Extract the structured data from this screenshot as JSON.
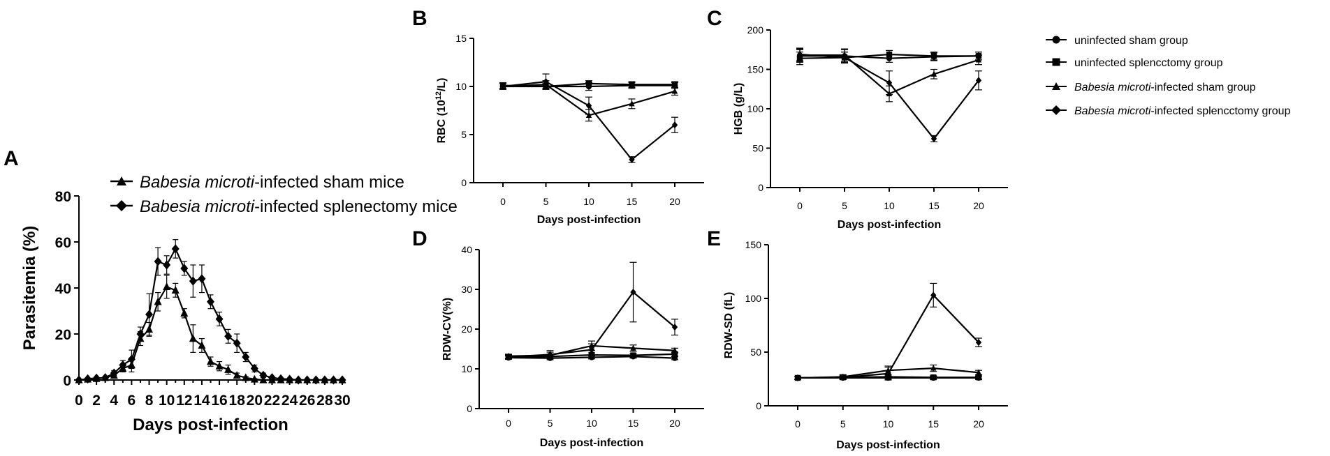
{
  "legend_right": {
    "items": [
      {
        "text": "uninfected sham group",
        "italic_prefix": "",
        "marker": "circle"
      },
      {
        "text": "uninfected splencctomy group",
        "italic_prefix": "",
        "marker": "square"
      },
      {
        "text": "-infected sham group",
        "italic_prefix": "Babesia microti",
        "marker": "triangle"
      },
      {
        "text": "-infected splencctomy group",
        "italic_prefix": "Babesia microti",
        "marker": "diamond"
      }
    ]
  },
  "chart_data": [
    {
      "panel": "A",
      "type": "line",
      "xlabel": "Days post-infection",
      "ylabel": "Parasitemia (%)",
      "xlim": [
        0,
        30
      ],
      "ylim": [
        0,
        80
      ],
      "x_ticks": [
        "0",
        "2",
        "4",
        "6",
        "8",
        "10",
        "12",
        "14",
        "16",
        "18",
        "20",
        "22",
        "24",
        "26",
        "28",
        "30"
      ],
      "y_ticks": [
        "0",
        "20",
        "40",
        "60",
        "80"
      ],
      "x": [
        0,
        1,
        2,
        3,
        4,
        5,
        6,
        7,
        8,
        9,
        10,
        11,
        12,
        13,
        14,
        15,
        16,
        17,
        18,
        19,
        20,
        21,
        22,
        23,
        24,
        25,
        26,
        27,
        28,
        29,
        30
      ],
      "series": [
        {
          "name": "Babesia microti-infected sham mice",
          "italic_prefix": "Babesia microti",
          "suffix": "-infected sham mice",
          "marker": "triangle",
          "values": [
            0,
            0.3,
            0.6,
            1,
            2,
            5,
            6.5,
            18,
            22,
            34,
            40.5,
            39,
            29,
            18,
            15,
            8,
            6,
            4.5,
            2,
            1,
            0.3,
            0,
            0,
            0,
            0,
            0,
            0,
            0,
            0,
            0,
            0
          ],
          "errors": [
            0,
            0.2,
            0.3,
            0.5,
            1,
            1.5,
            3,
            3,
            3,
            4,
            5,
            3,
            2,
            6,
            3,
            2,
            2,
            2,
            1,
            0.5,
            0.3,
            0,
            0,
            0,
            0,
            0,
            0,
            0,
            0,
            0,
            0
          ]
        },
        {
          "name": "Babesia microti-infected splenectomy mice",
          "italic_prefix": "Babesia microti",
          "suffix": "-infected splenectomy mice",
          "marker": "diamond",
          "values": [
            0,
            0.5,
            0.8,
            1,
            3,
            6.5,
            9,
            20,
            28.5,
            51.5,
            50,
            57,
            48.5,
            43,
            44,
            34,
            26.5,
            19,
            16,
            10,
            5,
            2,
            1,
            0.5,
            0.3,
            0,
            0,
            0,
            0,
            0,
            0
          ],
          "errors": [
            0,
            0.3,
            0.4,
            0.5,
            1,
            2,
            4,
            3,
            9,
            6,
            4,
            4,
            3,
            7,
            6,
            3,
            3,
            3,
            4,
            2,
            1.5,
            1,
            0.5,
            0.3,
            0.2,
            0,
            0,
            0,
            0,
            0,
            0
          ]
        }
      ]
    },
    {
      "panel": "B",
      "type": "line",
      "xlabel": "Days post-infection",
      "ylabel_prefix": "RBC (10",
      "ylabel_sup": "12",
      "ylabel_suffix": "/L)",
      "ylim": [
        0,
        15
      ],
      "x_ticks": [
        "0",
        "5",
        "10",
        "15",
        "20"
      ],
      "y_ticks": [
        "0",
        "5",
        "10",
        "15"
      ],
      "x": [
        0,
        5,
        10,
        15,
        20
      ],
      "series": [
        {
          "name": "uninfected sham group",
          "marker": "circle",
          "values": [
            10,
            10,
            10,
            10.1,
            10.1
          ],
          "errors": [
            0.3,
            0.3,
            0.4,
            0.3,
            0.3
          ]
        },
        {
          "name": "uninfected splencctomy group",
          "marker": "square",
          "values": [
            10.1,
            10,
            10.3,
            10.2,
            10.2
          ],
          "errors": [
            0.3,
            0.3,
            0.3,
            0.3,
            0.3
          ]
        },
        {
          "name": "Babesia microti-infected sham group",
          "marker": "triangle",
          "values": [
            10,
            10.2,
            7,
            8.2,
            9.5
          ],
          "errors": [
            0.3,
            0.4,
            0.6,
            0.5,
            0.4
          ]
        },
        {
          "name": "Babesia microti-infected splencctomy group",
          "marker": "diamond",
          "values": [
            10,
            10.5,
            8,
            2.4,
            6
          ],
          "errors": [
            0.3,
            0.8,
            0.9,
            0.3,
            0.8
          ]
        }
      ]
    },
    {
      "panel": "C",
      "type": "line",
      "xlabel": "Days post-infection",
      "ylabel": "HGB (g/L)",
      "ylim": [
        0,
        200
      ],
      "x_ticks": [
        "0",
        "5",
        "10",
        "15",
        "20"
      ],
      "y_ticks": [
        "0",
        "50",
        "100",
        "150",
        "200"
      ],
      "x": [
        0,
        5,
        10,
        15,
        20
      ],
      "series": [
        {
          "name": "uninfected sham group",
          "marker": "circle",
          "values": [
            167,
            167,
            164,
            166,
            167
          ],
          "errors": [
            8,
            8,
            5,
            5,
            5
          ]
        },
        {
          "name": "uninfected splencctomy group",
          "marker": "square",
          "values": [
            164,
            165,
            169,
            167,
            167
          ],
          "errors": [
            8,
            7,
            5,
            5,
            5
          ]
        },
        {
          "name": "Babesia microti-infected sham group",
          "marker": "triangle",
          "values": [
            168,
            168,
            119,
            144,
            162
          ],
          "errors": [
            8,
            8,
            10,
            6,
            6
          ]
        },
        {
          "name": "Babesia microti-infected splencctomy group",
          "marker": "diamond",
          "values": [
            169,
            165,
            133,
            62,
            136
          ],
          "errors": [
            8,
            7,
            15,
            4,
            12
          ]
        }
      ]
    },
    {
      "panel": "D",
      "type": "line",
      "xlabel": "Days post-infection",
      "ylabel": "RDW-CV(%)",
      "ylim": [
        0,
        40
      ],
      "x_ticks": [
        "0",
        "5",
        "10",
        "15",
        "20"
      ],
      "y_ticks": [
        "0",
        "10",
        "20",
        "30",
        "40"
      ],
      "x": [
        0,
        5,
        10,
        15,
        20
      ],
      "series": [
        {
          "name": "uninfected sham group",
          "marker": "circle",
          "values": [
            12.8,
            12.7,
            12.9,
            13.1,
            12.7
          ],
          "errors": [
            0.4,
            0.4,
            0.4,
            0.4,
            0.4
          ]
        },
        {
          "name": "uninfected splencctomy group",
          "marker": "square",
          "values": [
            13,
            13.1,
            13.5,
            13.4,
            13.7
          ],
          "errors": [
            0.4,
            0.4,
            0.5,
            0.5,
            0.5
          ]
        },
        {
          "name": "Babesia microti-infected sham group",
          "marker": "triangle",
          "values": [
            13.2,
            13.4,
            15.8,
            15.2,
            14.6
          ],
          "errors": [
            0.5,
            0.8,
            1.2,
            0.8,
            0.6
          ]
        },
        {
          "name": "Babesia microti-infected splencctomy group",
          "marker": "diamond",
          "values": [
            13,
            13.6,
            14.8,
            29.3,
            20.5
          ],
          "errors": [
            0.5,
            1,
            1.5,
            7.5,
            2
          ]
        }
      ]
    },
    {
      "panel": "E",
      "type": "line",
      "xlabel": "Days post-infection",
      "ylabel": "RDW-SD (fL)",
      "ylim": [
        0,
        150
      ],
      "x_ticks": [
        "0",
        "5",
        "10",
        "15",
        "20"
      ],
      "y_ticks": [
        "0",
        "50",
        "100",
        "150"
      ],
      "x": [
        0,
        5,
        10,
        15,
        20
      ],
      "series": [
        {
          "name": "uninfected sham group",
          "marker": "circle",
          "values": [
            26,
            26,
            26,
            26,
            26
          ],
          "errors": [
            1.5,
            1.5,
            1.5,
            1.5,
            1.5
          ]
        },
        {
          "name": "uninfected splencctomy group",
          "marker": "square",
          "values": [
            26,
            26.5,
            27,
            26.5,
            26.5
          ],
          "errors": [
            1.5,
            1.5,
            1.5,
            1.5,
            1.5
          ]
        },
        {
          "name": "Babesia microti-infected sham group",
          "marker": "triangle",
          "values": [
            26,
            27,
            33,
            35,
            31
          ],
          "errors": [
            1.5,
            2,
            4,
            3,
            2
          ]
        },
        {
          "name": "Babesia microti-infected splencctomy group",
          "marker": "diamond",
          "values": [
            26,
            26.5,
            30,
            103,
            59
          ],
          "errors": [
            1.5,
            2,
            6,
            11,
            4
          ]
        }
      ]
    }
  ]
}
